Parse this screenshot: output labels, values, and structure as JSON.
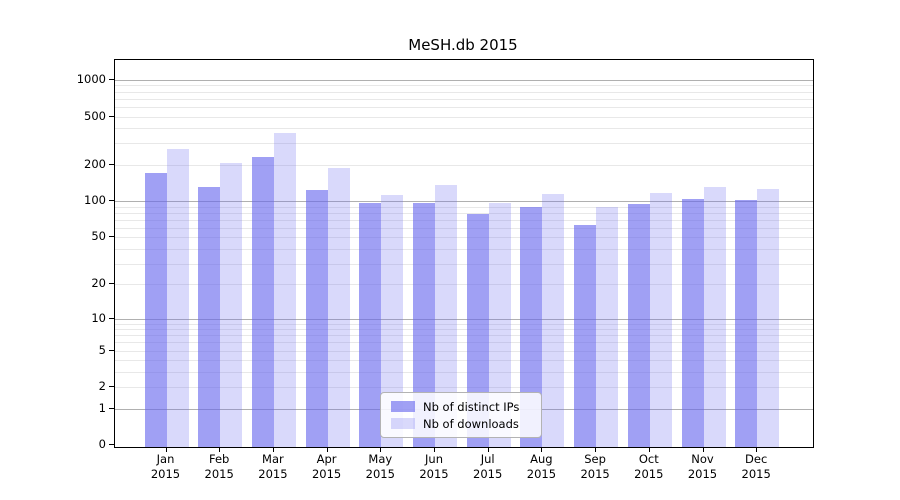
{
  "chart_data": {
    "type": "bar",
    "title": "MeSH.db 2015",
    "y_scale": "log(1+x)",
    "ylim": [
      0,
      1450
    ],
    "grid": "both (major decades darker, minor lighter)",
    "legend_position": "bottom-center",
    "categories": [
      "Jan",
      "Feb",
      "Mar",
      "Apr",
      "May",
      "Jun",
      "Jul",
      "Aug",
      "Sep",
      "Oct",
      "Nov",
      "Dec"
    ],
    "x_tick_second_line": "2015",
    "series": [
      {
        "name": "Nb of distinct IPs",
        "color": "#6666ee",
        "alpha": 0.62,
        "values": [
          172,
          132,
          232,
          123,
          97,
          96,
          78,
          90,
          63,
          95,
          105,
          102
        ]
      },
      {
        "name": "Nb of downloads",
        "color": "#6666ee",
        "alpha": 0.25,
        "values": [
          270,
          208,
          367,
          189,
          113,
          137,
          97,
          115,
          90,
          116,
          132,
          126
        ]
      }
    ],
    "y_tick_labels": [
      "1000",
      "500",
      "200",
      "100",
      "50",
      "20",
      "10",
      "5",
      "2",
      "1",
      "0"
    ],
    "y_tick_values": [
      1000,
      500,
      200,
      100,
      50,
      20,
      10,
      5,
      2,
      1,
      0
    ],
    "y_major_gridlines": [
      1,
      10,
      100,
      1000
    ],
    "y_minor_gridlines": [
      2,
      3,
      4,
      5,
      6,
      7,
      8,
      9,
      20,
      30,
      40,
      50,
      60,
      70,
      80,
      90,
      200,
      300,
      400,
      500,
      600,
      700,
      800,
      900
    ]
  },
  "colors": {
    "bar_base": "#6666ee",
    "major_grid": "#b0b0b0",
    "minor_grid": "#e8e8e8",
    "axis": "#000000",
    "legend_border": "#b3b3b3"
  },
  "legend": {
    "items": [
      "Nb of distinct IPs",
      "Nb of downloads"
    ]
  }
}
